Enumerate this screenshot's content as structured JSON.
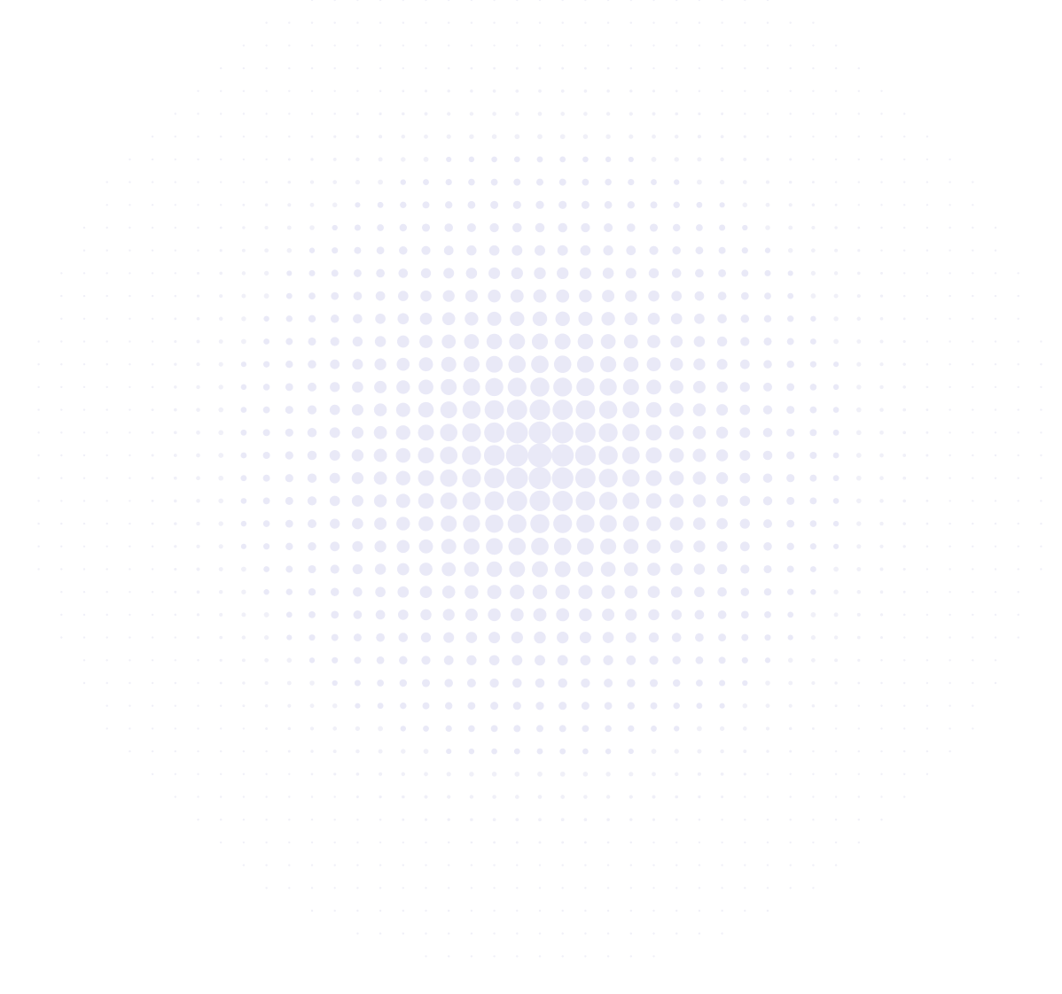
{
  "background_color": "#ffffff",
  "pattern": {
    "kind": "radial-halftone-dots",
    "dot_color": "#e9e9f7",
    "edge_dot_color": "#f0f0f8"
  }
}
